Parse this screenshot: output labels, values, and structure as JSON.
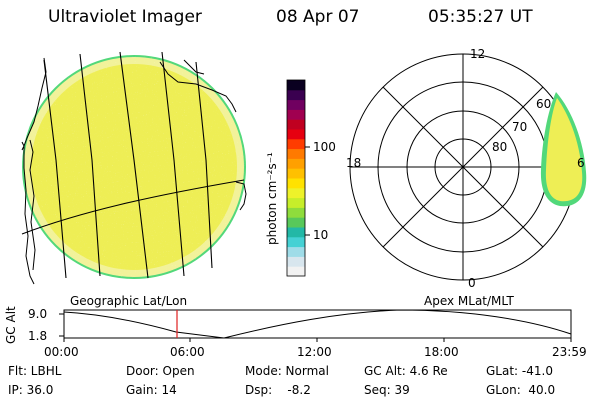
{
  "header": {
    "title": "Ultraviolet Imager",
    "date": "08 Apr 07",
    "time": "05:35:27 UT"
  },
  "colorbar": {
    "unit_label": "photon cm⁻²s⁻¹",
    "tick_labels": [
      "100",
      "10"
    ],
    "colors": [
      "#f2f2f2",
      "#d8e6ee",
      "#9fdce8",
      "#45d1d4",
      "#23b8a6",
      "#58c85a",
      "#8fdc3c",
      "#c7ee2a",
      "#eef22a",
      "#ffe200",
      "#ffc000",
      "#ffa000",
      "#ff7a00",
      "#ff3c00",
      "#e60010",
      "#c00020",
      "#a00050",
      "#700060",
      "#3a0050",
      "#0a0020"
    ]
  },
  "polar_plot": {
    "hour_labels": [
      "12",
      "18",
      "6",
      "0"
    ],
    "lat_labels": [
      "60",
      "70",
      "80"
    ]
  },
  "map_labels": {
    "left": "Geographic Lat/Lon",
    "right": "Apex MLat/MLT"
  },
  "altitude_plot": {
    "ylabel": "GC Alt",
    "y_ticks": [
      "9.0",
      "1.8"
    ],
    "x_ticks": [
      "00:00",
      "06:00",
      "12:00",
      "18:00",
      "23:59"
    ]
  },
  "info": {
    "row1": [
      "Flt: LBHL",
      "Door: Open",
      "Mode: Normal",
      "GC Alt: 4.6 Re",
      "GLat: -41.0"
    ],
    "row2": [
      "IP: 36.0",
      "Gain: 14",
      "Dsp:    -8.2",
      "Seq: 39",
      "GLon:  40.0"
    ]
  }
}
